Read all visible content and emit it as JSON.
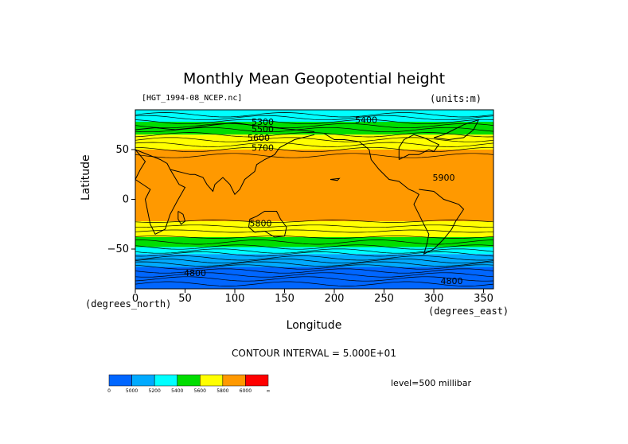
{
  "header": {
    "title": "Monthly Mean Geopotential height",
    "file_label": "[HGT_1994-08_NCEP.nc]",
    "units_label": "(units:m)"
  },
  "axes": {
    "ylabel": "Latitude",
    "xlabel": "Longitude",
    "x_unit_left": "(degrees_north)",
    "x_unit_right": "(degrees_east)"
  },
  "footer": {
    "contour_interval": "CONTOUR INTERVAL = 5.000E+01",
    "level": "level=500 millibar"
  },
  "chart_data": {
    "type": "heatmap",
    "title": "Monthly Mean Geopotential height",
    "xlabel": "Longitude",
    "ylabel": "Latitude",
    "xlim": [
      0,
      360
    ],
    "ylim": [
      -90,
      90
    ],
    "x_ticks": [
      0,
      50,
      100,
      150,
      200,
      250,
      300,
      350
    ],
    "y_ticks": [
      50,
      0,
      -50
    ],
    "y_tick_labels": [
      "50",
      "0",
      "−50"
    ],
    "grid": false,
    "colors": {
      "blue": "#0066ff",
      "lightblue": "#00aaff",
      "cyan": "#00ffff",
      "green": "#00dd00",
      "yellow": "#ffff00",
      "orange": "#ff9900",
      "red": "#ff0000"
    },
    "bands": [
      {
        "lat_top": 90,
        "lat_bottom": 78,
        "color": "cyan"
      },
      {
        "lat_top": 78,
        "lat_bottom": 65,
        "color": "green"
      },
      {
        "lat_top": 65,
        "lat_bottom": 50,
        "color": "yellow"
      },
      {
        "lat_top": 50,
        "lat_bottom": -22,
        "color": "orange"
      },
      {
        "lat_top": -22,
        "lat_bottom": -38,
        "color": "yellow"
      },
      {
        "lat_top": -38,
        "lat_bottom": -48,
        "color": "green"
      },
      {
        "lat_top": -48,
        "lat_bottom": -55,
        "color": "cyan"
      },
      {
        "lat_top": -55,
        "lat_bottom": -68,
        "color": "lightblue"
      },
      {
        "lat_top": -68,
        "lat_bottom": -90,
        "color": "blue"
      }
    ],
    "contour_labels": [
      {
        "text": "5300",
        "lon": 128,
        "lat": 78
      },
      {
        "text": "5400",
        "lon": 232,
        "lat": 80
      },
      {
        "text": "5500",
        "lon": 128,
        "lat": 71
      },
      {
        "text": "5600",
        "lon": 124,
        "lat": 62
      },
      {
        "text": "5700",
        "lon": 128,
        "lat": 52
      },
      {
        "text": "5900",
        "lon": 310,
        "lat": 22
      },
      {
        "text": "5800",
        "lon": 126,
        "lat": -24
      },
      {
        "text": "4800",
        "lon": 60,
        "lat": -74
      },
      {
        "text": "4800",
        "lon": 318,
        "lat": -82
      }
    ],
    "colorbar": {
      "colors": [
        "blue",
        "lightblue",
        "cyan",
        "green",
        "yellow",
        "orange",
        "red"
      ],
      "labels": [
        "0",
        "5000",
        "5200",
        "5400",
        "5600",
        "5800",
        "6000",
        "∞"
      ]
    }
  }
}
